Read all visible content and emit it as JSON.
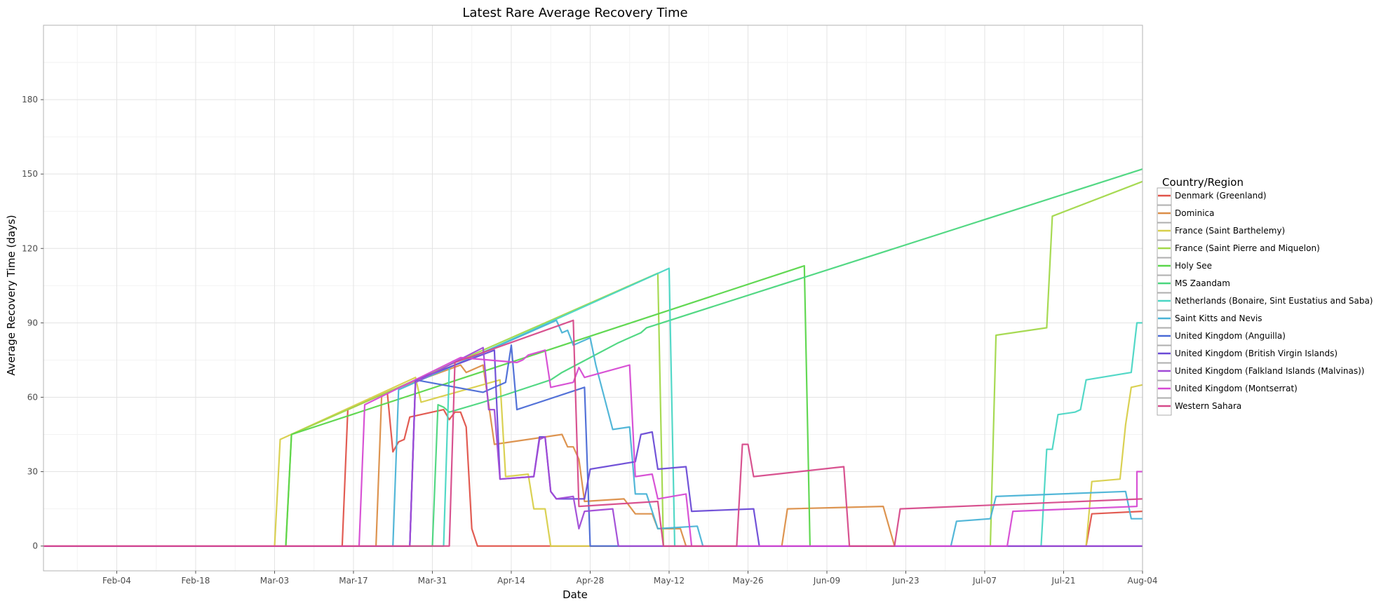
{
  "chart_data": {
    "type": "line",
    "title": "Latest Rare Average Recovery Time",
    "xlabel": "Date",
    "ylabel": "Average Recovery Time (days)",
    "x_range": [
      "2020-01-22",
      "2020-08-04"
    ],
    "ylim": [
      -10,
      210
    ],
    "x_ticks": [
      {
        "date": "2020-02-04",
        "label": "Feb-04"
      },
      {
        "date": "2020-02-18",
        "label": "Feb-18"
      },
      {
        "date": "2020-03-03",
        "label": "Mar-03"
      },
      {
        "date": "2020-03-17",
        "label": "Mar-17"
      },
      {
        "date": "2020-03-31",
        "label": "Mar-31"
      },
      {
        "date": "2020-04-14",
        "label": "Apr-14"
      },
      {
        "date": "2020-04-28",
        "label": "Apr-28"
      },
      {
        "date": "2020-05-12",
        "label": "May-12"
      },
      {
        "date": "2020-05-26",
        "label": "May-26"
      },
      {
        "date": "2020-06-09",
        "label": "Jun-09"
      },
      {
        "date": "2020-06-23",
        "label": "Jun-23"
      },
      {
        "date": "2020-07-07",
        "label": "Jul-07"
      },
      {
        "date": "2020-07-21",
        "label": "Jul-21"
      },
      {
        "date": "2020-08-04",
        "label": "Aug-04"
      }
    ],
    "y_ticks": [
      0,
      30,
      60,
      90,
      120,
      150,
      180
    ],
    "grid": true,
    "legend": {
      "title": "Country/Region",
      "placement": "right"
    },
    "series": [
      {
        "name": "Denmark (Greenland)",
        "color": "#e0534a",
        "points": [
          [
            "2020-01-22",
            0
          ],
          [
            "2020-03-15",
            0
          ],
          [
            "2020-03-16",
            55
          ],
          [
            "2020-03-22",
            61
          ],
          [
            "2020-03-23",
            62
          ],
          [
            "2020-03-24",
            38
          ],
          [
            "2020-03-25",
            42
          ],
          [
            "2020-03-26",
            43
          ],
          [
            "2020-03-27",
            52
          ],
          [
            "2020-04-02",
            55
          ],
          [
            "2020-04-03",
            51
          ],
          [
            "2020-04-04",
            54
          ],
          [
            "2020-04-05",
            54
          ],
          [
            "2020-04-06",
            48
          ],
          [
            "2020-04-07",
            7
          ],
          [
            "2020-04-08",
            0
          ],
          [
            "2020-07-25",
            0
          ],
          [
            "2020-07-26",
            13
          ],
          [
            "2020-08-04",
            14
          ]
        ]
      },
      {
        "name": "Dominica",
        "color": "#db8e47",
        "points": [
          [
            "2020-01-22",
            0
          ],
          [
            "2020-03-21",
            0
          ],
          [
            "2020-03-22",
            61
          ],
          [
            "2020-03-24",
            63
          ],
          [
            "2020-04-05",
            73
          ],
          [
            "2020-04-06",
            70
          ],
          [
            "2020-04-08",
            72
          ],
          [
            "2020-04-09",
            73
          ],
          [
            "2020-04-11",
            41
          ],
          [
            "2020-04-23",
            45
          ],
          [
            "2020-04-24",
            40
          ],
          [
            "2020-04-25",
            40
          ],
          [
            "2020-04-26",
            35
          ],
          [
            "2020-04-27",
            18
          ],
          [
            "2020-05-04",
            19
          ],
          [
            "2020-05-06",
            13
          ],
          [
            "2020-05-09",
            13
          ],
          [
            "2020-05-10",
            7
          ],
          [
            "2020-05-14",
            7
          ],
          [
            "2020-05-15",
            0
          ],
          [
            "2020-06-01",
            0
          ],
          [
            "2020-06-02",
            15
          ],
          [
            "2020-06-19",
            16
          ],
          [
            "2020-06-21",
            0
          ],
          [
            "2020-08-04",
            0
          ]
        ]
      },
      {
        "name": "France (Saint Barthelemy)",
        "color": "#d8cf4a",
        "points": [
          [
            "2020-01-22",
            0
          ],
          [
            "2020-03-03",
            0
          ],
          [
            "2020-03-04",
            43
          ],
          [
            "2020-03-05",
            44
          ],
          [
            "2020-03-28",
            68
          ],
          [
            "2020-03-29",
            58
          ],
          [
            "2020-04-12",
            67
          ],
          [
            "2020-04-13",
            28
          ],
          [
            "2020-04-17",
            29
          ],
          [
            "2020-04-18",
            15
          ],
          [
            "2020-04-20",
            15
          ],
          [
            "2020-04-21",
            0
          ],
          [
            "2020-07-25",
            0
          ],
          [
            "2020-07-26",
            26
          ],
          [
            "2020-07-31",
            27
          ],
          [
            "2020-08-01",
            49
          ],
          [
            "2020-08-02",
            64
          ],
          [
            "2020-08-04",
            65
          ]
        ]
      },
      {
        "name": "France (Saint Pierre and Miquelon)",
        "color": "#a2d84a",
        "points": [
          [
            "2020-01-22",
            0
          ],
          [
            "2020-03-05",
            0
          ],
          [
            "2020-03-06",
            45
          ],
          [
            "2020-05-10",
            110
          ],
          [
            "2020-05-11",
            0
          ],
          [
            "2020-07-08",
            0
          ],
          [
            "2020-07-09",
            85
          ],
          [
            "2020-07-18",
            88
          ],
          [
            "2020-07-19",
            133
          ],
          [
            "2020-08-04",
            147
          ]
        ]
      },
      {
        "name": "Holy See",
        "color": "#5ad64a",
        "points": [
          [
            "2020-01-22",
            0
          ],
          [
            "2020-03-05",
            0
          ],
          [
            "2020-03-06",
            45
          ],
          [
            "2020-06-05",
            113
          ],
          [
            "2020-06-06",
            0
          ],
          [
            "2020-08-04",
            0
          ]
        ]
      },
      {
        "name": "MS Zaandam",
        "color": "#4ad67d",
        "points": [
          [
            "2020-01-22",
            0
          ],
          [
            "2020-03-31",
            0
          ],
          [
            "2020-04-01",
            57
          ],
          [
            "2020-04-02",
            56
          ],
          [
            "2020-04-03",
            54
          ],
          [
            "2020-04-09",
            58
          ],
          [
            "2020-04-21",
            67
          ],
          [
            "2020-04-23",
            70
          ],
          [
            "2020-05-03",
            82
          ],
          [
            "2020-05-07",
            86
          ],
          [
            "2020-05-08",
            88
          ],
          [
            "2020-08-04",
            152
          ]
        ]
      },
      {
        "name": "Netherlands (Bonaire, Sint Eustatius and Saba)",
        "color": "#4ad6c4",
        "points": [
          [
            "2020-01-22",
            0
          ],
          [
            "2020-04-02",
            0
          ],
          [
            "2020-04-03",
            72
          ],
          [
            "2020-05-12",
            112
          ],
          [
            "2020-05-13",
            0
          ],
          [
            "2020-07-17",
            0
          ],
          [
            "2020-07-18",
            39
          ],
          [
            "2020-07-19",
            39
          ],
          [
            "2020-07-20",
            53
          ],
          [
            "2020-07-23",
            54
          ],
          [
            "2020-07-24",
            55
          ],
          [
            "2020-07-25",
            67
          ],
          [
            "2020-08-02",
            70
          ],
          [
            "2020-08-03",
            90
          ],
          [
            "2020-08-04",
            90
          ]
        ]
      },
      {
        "name": "Saint Kitts and Nevis",
        "color": "#4ab3d6",
        "points": [
          [
            "2020-01-22",
            0
          ],
          [
            "2020-03-24",
            0
          ],
          [
            "2020-03-25",
            63
          ],
          [
            "2020-04-22",
            91
          ],
          [
            "2020-04-23",
            86
          ],
          [
            "2020-04-24",
            87
          ],
          [
            "2020-04-25",
            81
          ],
          [
            "2020-04-28",
            84
          ],
          [
            "2020-04-29",
            73
          ],
          [
            "2020-05-02",
            47
          ],
          [
            "2020-05-05",
            48
          ],
          [
            "2020-05-06",
            21
          ],
          [
            "2020-05-08",
            21
          ],
          [
            "2020-05-10",
            7
          ],
          [
            "2020-05-17",
            8
          ],
          [
            "2020-05-18",
            0
          ],
          [
            "2020-07-01",
            0
          ],
          [
            "2020-07-02",
            10
          ],
          [
            "2020-07-08",
            11
          ],
          [
            "2020-07-09",
            20
          ],
          [
            "2020-08-01",
            22
          ],
          [
            "2020-08-02",
            11
          ],
          [
            "2020-08-04",
            11
          ]
        ]
      },
      {
        "name": "United Kingdom (Anguilla)",
        "color": "#4a6ad6",
        "points": [
          [
            "2020-01-22",
            0
          ],
          [
            "2020-03-27",
            0
          ],
          [
            "2020-03-28",
            67
          ],
          [
            "2020-04-09",
            62
          ],
          [
            "2020-04-13",
            66
          ],
          [
            "2020-04-14",
            81
          ],
          [
            "2020-04-15",
            55
          ],
          [
            "2020-04-27",
            64
          ],
          [
            "2020-04-28",
            0
          ],
          [
            "2020-08-04",
            0
          ]
        ]
      },
      {
        "name": "United Kingdom (British Virgin Islands)",
        "color": "#6a4ad6",
        "points": [
          [
            "2020-01-22",
            0
          ],
          [
            "2020-03-27",
            0
          ],
          [
            "2020-03-28",
            67
          ],
          [
            "2020-04-11",
            79
          ],
          [
            "2020-04-12",
            27
          ],
          [
            "2020-04-18",
            28
          ],
          [
            "2020-04-19",
            44
          ],
          [
            "2020-04-20",
            44
          ],
          [
            "2020-04-21",
            22
          ],
          [
            "2020-04-22",
            19
          ],
          [
            "2020-04-27",
            19
          ],
          [
            "2020-04-28",
            31
          ],
          [
            "2020-05-06",
            34
          ],
          [
            "2020-05-07",
            45
          ],
          [
            "2020-05-09",
            46
          ],
          [
            "2020-05-10",
            31
          ],
          [
            "2020-05-15",
            32
          ],
          [
            "2020-05-16",
            14
          ],
          [
            "2020-05-27",
            15
          ],
          [
            "2020-05-28",
            0
          ],
          [
            "2020-08-04",
            0
          ]
        ]
      },
      {
        "name": "United Kingdom (Falkland Islands (Malvinas))",
        "color": "#a04ad6",
        "points": [
          [
            "2020-01-22",
            0
          ],
          [
            "2020-03-27",
            0
          ],
          [
            "2020-03-28",
            66
          ],
          [
            "2020-04-09",
            80
          ],
          [
            "2020-04-10",
            55
          ],
          [
            "2020-04-11",
            55
          ],
          [
            "2020-04-12",
            27
          ],
          [
            "2020-04-18",
            28
          ],
          [
            "2020-04-19",
            43
          ],
          [
            "2020-04-20",
            44
          ],
          [
            "2020-04-21",
            22
          ],
          [
            "2020-04-22",
            19
          ],
          [
            "2020-04-25",
            20
          ],
          [
            "2020-04-26",
            7
          ],
          [
            "2020-04-27",
            14
          ],
          [
            "2020-05-02",
            15
          ],
          [
            "2020-05-03",
            0
          ],
          [
            "2020-08-04",
            0
          ]
        ]
      },
      {
        "name": "United Kingdom (Montserrat)",
        "color": "#d64ad3",
        "points": [
          [
            "2020-01-22",
            0
          ],
          [
            "2020-03-18",
            0
          ],
          [
            "2020-03-19",
            57
          ],
          [
            "2020-04-05",
            76
          ],
          [
            "2020-04-15",
            74
          ],
          [
            "2020-04-16",
            75
          ],
          [
            "2020-04-17",
            77
          ],
          [
            "2020-04-20",
            79
          ],
          [
            "2020-04-21",
            64
          ],
          [
            "2020-04-25",
            66
          ],
          [
            "2020-04-26",
            72
          ],
          [
            "2020-04-27",
            68
          ],
          [
            "2020-05-05",
            73
          ],
          [
            "2020-05-06",
            28
          ],
          [
            "2020-05-09",
            29
          ],
          [
            "2020-05-10",
            19
          ],
          [
            "2020-05-15",
            21
          ],
          [
            "2020-05-16",
            0
          ],
          [
            "2020-07-11",
            0
          ],
          [
            "2020-07-12",
            14
          ],
          [
            "2020-08-03",
            16
          ],
          [
            "2020-08-03",
            30
          ],
          [
            "2020-08-04",
            30
          ]
        ]
      },
      {
        "name": "Western Sahara",
        "color": "#d64a8a",
        "points": [
          [
            "2020-01-22",
            0
          ],
          [
            "2020-04-03",
            0
          ],
          [
            "2020-04-04",
            74
          ],
          [
            "2020-04-25",
            91
          ],
          [
            "2020-04-26",
            16
          ],
          [
            "2020-05-10",
            18
          ],
          [
            "2020-05-11",
            0
          ],
          [
            "2020-05-24",
            0
          ],
          [
            "2020-05-25",
            41
          ],
          [
            "2020-05-26",
            41
          ],
          [
            "2020-05-27",
            28
          ],
          [
            "2020-06-12",
            32
          ],
          [
            "2020-06-13",
            0
          ],
          [
            "2020-06-21",
            0
          ],
          [
            "2020-06-22",
            15
          ],
          [
            "2020-08-04",
            19
          ]
        ]
      }
    ]
  }
}
